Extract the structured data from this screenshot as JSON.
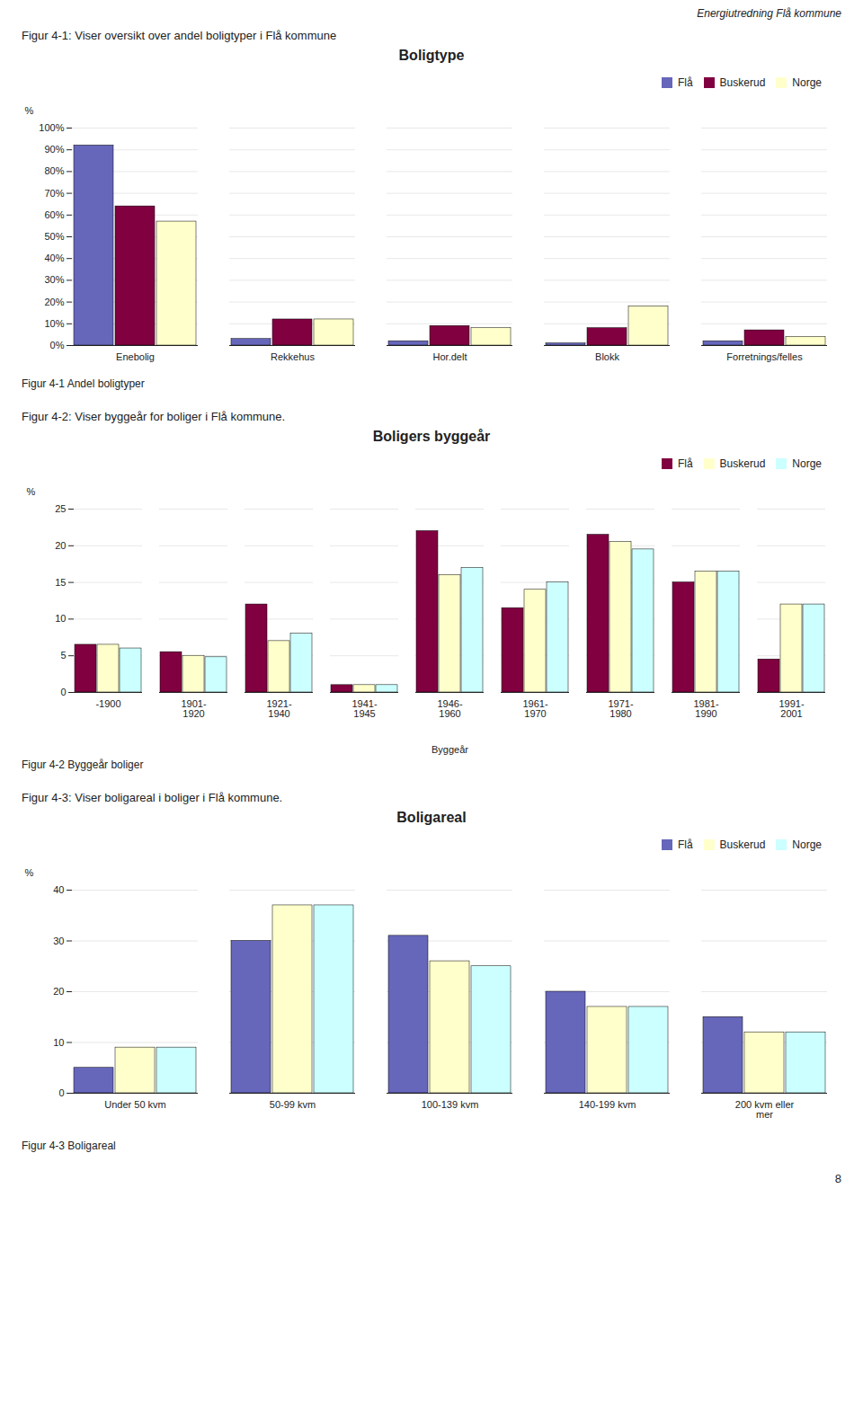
{
  "page_title": "Energiutredning Flå kommune",
  "page_number": "8",
  "chart_data": [
    {
      "type": "bar",
      "title": "Boligtype",
      "subtitle": "Figur 4-1: Viser oversikt over andel boligtyper i Flå kommune",
      "caption": "Figur 4-1 Andel boligtyper",
      "ylabel": "%",
      "ylim": [
        0,
        1.0
      ],
      "yticks": [
        {
          "value": 0.0,
          "label": "0%"
        },
        {
          "value": 0.1,
          "label": "10%"
        },
        {
          "value": 0.2,
          "label": "20%"
        },
        {
          "value": 0.3,
          "label": "30%"
        },
        {
          "value": 0.4,
          "label": "40%"
        },
        {
          "value": 0.5,
          "label": "50%"
        },
        {
          "value": 0.6,
          "label": "60%"
        },
        {
          "value": 0.7,
          "label": "70%"
        },
        {
          "value": 0.8,
          "label": "80%"
        },
        {
          "value": 0.9,
          "label": "90%"
        },
        {
          "value": 1.0,
          "label": "100%"
        }
      ],
      "categories": [
        "Enebolig",
        "Rekkehus",
        "Hor.delt",
        "Blokk",
        "Forretnings/felles"
      ],
      "series": [
        {
          "name": "Flå",
          "color": "#6666bb",
          "values": [
            0.92,
            0.03,
            0.02,
            0.01,
            0.02
          ]
        },
        {
          "name": "Buskerud",
          "color": "#800040",
          "values": [
            0.64,
            0.12,
            0.09,
            0.08,
            0.07
          ]
        },
        {
          "name": "Norge",
          "color": "#ffffcc",
          "values": [
            0.57,
            0.12,
            0.08,
            0.18,
            0.04
          ]
        }
      ],
      "grid": true,
      "legend": "upper right"
    },
    {
      "type": "bar",
      "title": "Boligers byggeår",
      "subtitle": "Figur 4-2: Viser byggeår for boliger i Flå kommune.",
      "caption": "Figur 4-2 Byggeår boliger",
      "xlabel": "Byggeår",
      "ylabel": "%",
      "ylim": [
        0,
        25
      ],
      "yticks": [
        0,
        5,
        10,
        15,
        20,
        25
      ],
      "categories": [
        "-1900",
        "1901-\n1920",
        "1921-\n1940",
        "1941-\n1945",
        "1946-\n1960",
        "1961-\n1970",
        "1971-\n1980",
        "1981-\n1990",
        "1991-\n2001"
      ],
      "series": [
        {
          "name": "Flå",
          "color": "#800040",
          "values": [
            6.5,
            5.5,
            12.0,
            1.0,
            22.0,
            11.5,
            21.5,
            15.0,
            4.5
          ]
        },
        {
          "name": "Buskerud",
          "color": "#ffffcc",
          "values": [
            6.5,
            5.0,
            7.0,
            1.0,
            16.0,
            14.0,
            20.5,
            16.5,
            12.0
          ]
        },
        {
          "name": "Norge",
          "color": "#ccffff",
          "values": [
            6.0,
            4.8,
            8.0,
            1.0,
            17.0,
            15.0,
            19.5,
            16.5,
            12.0
          ]
        }
      ],
      "grid": true,
      "legend": "upper right"
    },
    {
      "type": "bar",
      "title": "Boligareal",
      "subtitle": "Figur 4-3: Viser boligareal i boliger i Flå kommune.",
      "caption": "Figur 4-3 Boligareal",
      "ylabel": "%",
      "ylim": [
        0,
        40
      ],
      "yticks": [
        0,
        10,
        20,
        30,
        40
      ],
      "categories": [
        "Under 50 kvm",
        "50-99 kvm",
        "100-139 kvm",
        "140-199 kvm",
        "200 kvm eller\nmer"
      ],
      "series": [
        {
          "name": "Flå",
          "color": "#6666bb",
          "values": [
            5.0,
            30.0,
            31.0,
            20.0,
            15.0
          ]
        },
        {
          "name": "Buskerud",
          "color": "#ffffcc",
          "values": [
            9.0,
            37.0,
            26.0,
            17.0,
            12.0
          ]
        },
        {
          "name": "Norge",
          "color": "#ccffff",
          "values": [
            9.0,
            37.0,
            25.0,
            17.0,
            12.0
          ]
        }
      ],
      "grid": true,
      "legend": "upper right"
    }
  ]
}
